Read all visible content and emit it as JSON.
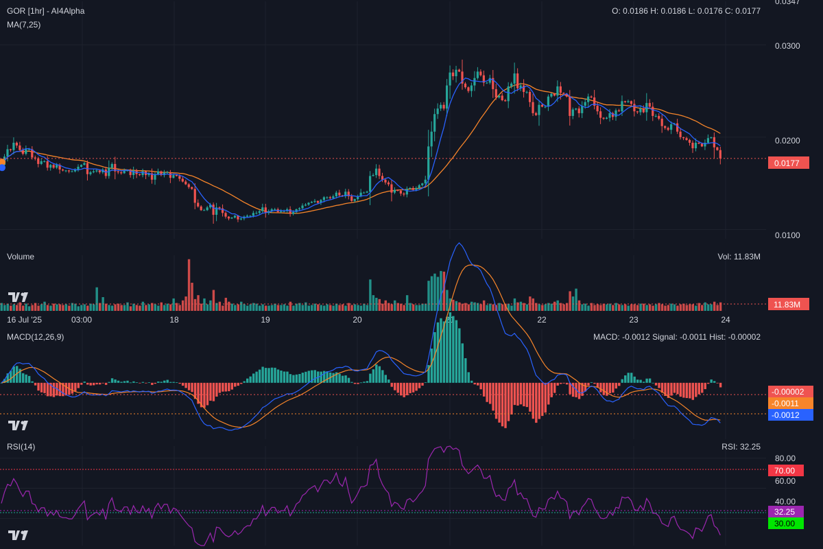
{
  "colors": {
    "background": "#131722",
    "grid": "#1e222d",
    "text": "#d1d4dc",
    "up": "#26a69a",
    "down": "#ef5350",
    "ma7": "#2962ff",
    "ma25": "#f7852a",
    "macd": "#2962ff",
    "signal": "#f7852a",
    "rsi": "#9c27b0",
    "rsi_upper": "#f23645",
    "rsi_lower": "#22ab94"
  },
  "header": {
    "title": "GOR [1hr] - AI4Alpha",
    "ma_label": "MA(7,25)",
    "ohlc": "O: 0.0186 H: 0.0186 L: 0.0176 C: 0.0177"
  },
  "price_axis": {
    "ticks": [
      "0.0347",
      "0.0300",
      "0.0200",
      "0.0100"
    ],
    "last": "0.0177"
  },
  "volume": {
    "label": "Volume",
    "value_text": "Vol: 11.83M",
    "badge": "11.83M"
  },
  "time_axis": {
    "labels": [
      "16 Jul '25",
      "03:00",
      "18",
      "19",
      "20",
      "21",
      "22",
      "23",
      "24"
    ]
  },
  "macd": {
    "label": "MACD(12,26,9)",
    "readout": "MACD: -0.0012 Signal: -0.0011 Hist: -0.00002",
    "badges": [
      "-0.00002",
      "-0.0011",
      "-0.0012"
    ]
  },
  "rsi": {
    "label": "RSI(14)",
    "readout": "RSI: 32.25",
    "ticks": [
      "80.00",
      "60.00",
      "40.00"
    ],
    "levels": [
      "70.00",
      "30.00"
    ],
    "value_badge": "32.25"
  },
  "icons": {
    "logo": "tradingview-logo-icon",
    "marker": "price-marker-dot-icon"
  },
  "chart_data": {
    "type": "line",
    "title": "GOR [1hr] - AI4Alpha",
    "xlabel": "",
    "ylabel": "",
    "x_start": "16 Jul '25",
    "days": [
      "18",
      "19",
      "20",
      "21",
      "22",
      "23",
      "24"
    ],
    "ylim": [
      0.009,
      0.0347
    ],
    "close": [
      0.017,
      0.0179,
      0.0187,
      0.0186,
      0.0194,
      0.0191,
      0.0186,
      0.0182,
      0.0187,
      0.0187,
      0.0178,
      0.0177,
      0.0171,
      0.0174,
      0.0174,
      0.0167,
      0.017,
      0.0167,
      0.017,
      0.0165,
      0.0164,
      0.0164,
      0.0163,
      0.0163,
      0.0165,
      0.0168,
      0.017,
      0.0172,
      0.016,
      0.0162,
      0.0163,
      0.0164,
      0.0162,
      0.0165,
      0.0158,
      0.0167,
      0.0171,
      0.0163,
      0.0162,
      0.0161,
      0.0164,
      0.0164,
      0.0159,
      0.0164,
      0.016,
      0.0159,
      0.0163,
      0.0159,
      0.0161,
      0.0154,
      0.016,
      0.0163,
      0.0159,
      0.0162,
      0.0162,
      0.0156,
      0.0159,
      0.0158,
      0.0155,
      0.0152,
      0.0149,
      0.0146,
      0.0144,
      0.0129,
      0.0125,
      0.0121,
      0.0121,
      0.0124,
      0.0127,
      0.0116,
      0.0124,
      0.0123,
      0.0118,
      0.0114,
      0.0112,
      0.0113,
      0.0115,
      0.0111,
      0.0112,
      0.0114,
      0.0115,
      0.0115,
      0.0118,
      0.0118,
      0.012,
      0.0124,
      0.0118,
      0.012,
      0.0122,
      0.0122,
      0.0119,
      0.012,
      0.012,
      0.0122,
      0.0117,
      0.0119,
      0.0122,
      0.0123,
      0.0126,
      0.0127,
      0.0129,
      0.013,
      0.0131,
      0.0129,
      0.0132,
      0.0135,
      0.0135,
      0.0134,
      0.0136,
      0.014,
      0.0137,
      0.0136,
      0.0141,
      0.0136,
      0.0131,
      0.0133,
      0.0136,
      0.014,
      0.014,
      0.0141,
      0.0158,
      0.0159,
      0.0166,
      0.0158,
      0.0154,
      0.0151,
      0.0149,
      0.014,
      0.0143,
      0.0142,
      0.0139,
      0.0138,
      0.0144,
      0.0145,
      0.0143,
      0.0145,
      0.0148,
      0.015,
      0.0154,
      0.019,
      0.0206,
      0.0225,
      0.0231,
      0.0235,
      0.0231,
      0.0256,
      0.027,
      0.0266,
      0.0273,
      0.0271,
      0.0258,
      0.0254,
      0.025,
      0.0256,
      0.0264,
      0.0271,
      0.0267,
      0.0259,
      0.0259,
      0.0264,
      0.0252,
      0.0243,
      0.0245,
      0.024,
      0.0239,
      0.0255,
      0.0258,
      0.0269,
      0.0253,
      0.0256,
      0.0249,
      0.0249,
      0.0238,
      0.0226,
      0.0224,
      0.0235,
      0.0233,
      0.0233,
      0.0244,
      0.0247,
      0.0245,
      0.0255,
      0.0248,
      0.0247,
      0.0244,
      0.0223,
      0.023,
      0.0231,
      0.0226,
      0.0234,
      0.0238,
      0.0244,
      0.0243,
      0.0234,
      0.0228,
      0.0221,
      0.022,
      0.0221,
      0.0226,
      0.0222,
      0.0229,
      0.0228,
      0.0239,
      0.0238,
      0.0239,
      0.0236,
      0.0228,
      0.0227,
      0.0231,
      0.0227,
      0.0237,
      0.0233,
      0.0223,
      0.0223,
      0.022,
      0.0212,
      0.021,
      0.0208,
      0.0214,
      0.0215,
      0.0206,
      0.02,
      0.0199,
      0.0197,
      0.0194,
      0.0188,
      0.0194,
      0.0193,
      0.019,
      0.0194,
      0.0199,
      0.02,
      0.0189,
      0.0186,
      0.0177
    ],
    "volume": [
      1.2,
      0.9,
      1.1,
      0.8,
      1.0,
      0.9,
      1.3,
      0.8,
      1.1,
      0.7,
      0.9,
      1.2,
      0.8,
      1.0,
      1.4,
      0.9,
      0.8,
      1.1,
      1.0,
      1.0,
      0.9,
      1.0,
      0.8,
      1.2,
      1.1,
      0.7,
      0.9,
      1.0,
      0.8,
      1.1,
      1.0,
      3.6,
      1.2,
      2.1,
      1.1,
      0.9,
      0.8,
      1.0,
      1.1,
      0.9,
      0.9,
      1.3,
      0.7,
      1.1,
      0.9,
      0.8,
      1.4,
      0.9,
      1.0,
      1.2,
      1.0,
      0.8,
      1.3,
      0.9,
      1.1,
      1.0,
      1.9,
      1.2,
      0.9,
      1.6,
      2.2,
      7.9,
      4.3,
      1.8,
      2.4,
      1.1,
      1.9,
      1.0,
      1.6,
      3.2,
      1.2,
      1.4,
      0.8,
      2.0,
      1.4,
      1.1,
      0.9,
      1.0,
      1.4,
      1.0,
      0.8,
      1.0,
      1.2,
      1.1,
      0.8,
      1.0,
      0.8,
      0.8,
      0.9,
      1.1,
      0.9,
      0.9,
      1.0,
      0.8,
      1.4,
      0.8,
      1.1,
      1.2,
      0.9,
      1.3,
      0.8,
      0.9,
      1.1,
      1.0,
      0.9,
      0.8,
      1.0,
      0.9,
      0.8,
      1.1,
      0.9,
      1.0,
      0.8,
      1.2,
      0.9,
      1.0,
      0.9,
      0.8,
      1.1,
      0.9,
      4.8,
      2.4,
      2.0,
      1.8,
      1.1,
      1.6,
      1.2,
      1.0,
      1.6,
      1.2,
      1.1,
      0.9,
      2.4,
      1.2,
      1.0,
      0.9,
      0.9,
      1.1,
      1.1,
      4.6,
      5.3,
      5.7,
      5.2,
      6.1,
      6.0,
      3.2,
      1.9,
      1.7,
      1.5,
      1.3,
      1.1,
      1.2,
      1.0,
      1.4,
      1.3,
      1.2,
      1.0,
      1.6,
      0.9,
      1.1,
      1.0,
      0.9,
      1.2,
      1.0,
      1.1,
      1.1,
      0.8,
      1.9,
      1.3,
      1.4,
      1.2,
      1.0,
      2.2,
      1.9,
      1.2,
      1.0,
      0.9,
      1.0,
      1.2,
      1.1,
      1.4,
      1.6,
      1.2,
      1.0,
      1.2,
      3.0,
      2.2,
      3.4,
      1.6,
      1.0,
      1.1,
      0.8,
      1.2,
      0.9,
      1.0,
      0.9,
      1.1,
      1.0,
      1.1,
      0.9,
      1.2,
      1.0,
      0.9,
      1.0,
      0.8,
      1.0,
      1.0,
      0.9,
      1.1,
      1.1,
      0.9,
      1.0,
      0.8,
      1.0,
      1.2,
      1.0,
      0.8,
      0.9,
      1.1,
      1.0,
      0.8,
      1.0,
      1.1,
      0.9,
      1.0,
      1.0,
      0.8,
      1.2,
      0.9,
      1.3,
      1.0,
      1.0,
      1.4,
      0.9,
      1.3
    ],
    "volume_ylim": [
      0,
      8.5
    ],
    "macd_ylim": [
      -0.00135,
      0.00095
    ],
    "rsi_ylim": [
      22,
      88
    ]
  }
}
